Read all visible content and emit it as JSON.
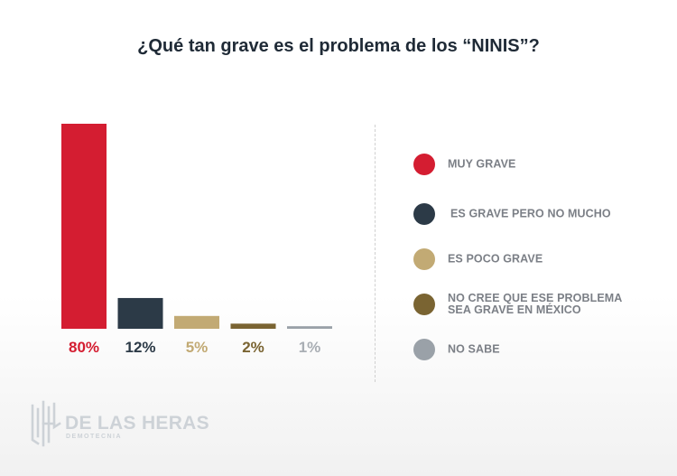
{
  "chart_data": {
    "type": "bar",
    "title": "¿Qué tan grave es el problema de los “NINIS”?",
    "categories": [
      "MUY GRAVE",
      "ES GRAVE PERO NO MUCHO",
      "ES POCO GRAVE",
      "NO CREE QUE ESE PROBLEMA SEA GRAVE EN MÉXICO",
      "NO SABE"
    ],
    "values": [
      80,
      12,
      5,
      2,
      1
    ],
    "value_labels": [
      "80%",
      "12%",
      "5%",
      "2%",
      "1%"
    ],
    "colors": [
      "#d41d31",
      "#2c3a47",
      "#c2aa74",
      "#7a6432",
      "#9aa1a8"
    ],
    "label_colors": [
      "#d41d31",
      "#2c3a47",
      "#c2aa74",
      "#7a6432",
      "#a9aeb4"
    ],
    "ylim": [
      0,
      80
    ],
    "xlabel": "",
    "ylabel": "",
    "legend_position": "right",
    "grid": false
  },
  "legend": {
    "items": [
      "MUY GRAVE",
      "ES GRAVE PERO NO MUCHO",
      "ES POCO GRAVE",
      "NO CREE QUE ESE PROBLEMA SEA GRAVE EN MÉXICO",
      "NO SABE"
    ]
  },
  "logo": {
    "name": "DE LAS HERAS",
    "subtitle": "DEMOTECNIA"
  }
}
